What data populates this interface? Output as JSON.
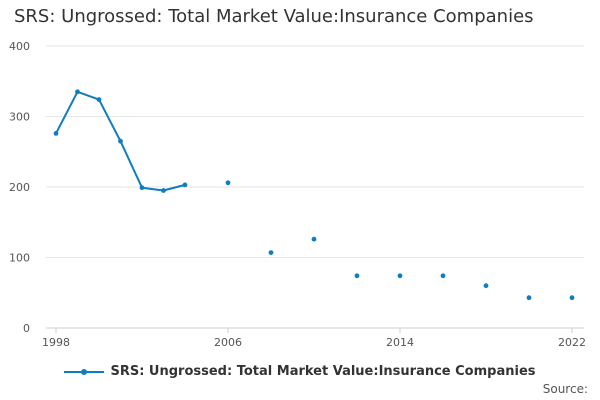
{
  "chart_data": {
    "type": "line",
    "title": "SRS: Ungrossed: Total Market Value:Insurance Companies",
    "xlabel": "",
    "ylabel": "",
    "xlim": [
      1998,
      2022
    ],
    "ylim": [
      0,
      400
    ],
    "x_ticks": [
      1998,
      2006,
      2014,
      2022
    ],
    "y_ticks": [
      0,
      100,
      200,
      300,
      400
    ],
    "grid": "horizontal",
    "legend_position": "bottom",
    "series": [
      {
        "name": "SRS: Ungrossed: Total Market Value:Insurance Companies",
        "color": "#0f7dbf",
        "x": [
          1998,
          1999,
          2000,
          2001,
          2002,
          2003,
          2004,
          2006,
          2008,
          2010,
          2012,
          2014,
          2016,
          2018,
          2020,
          2022
        ],
        "values": [
          276,
          335,
          324,
          265,
          199,
          195,
          203,
          206,
          107,
          126,
          74,
          74,
          74,
          60,
          43,
          43
        ]
      }
    ]
  },
  "legend": {
    "label": "SRS: Ungrossed: Total Market Value:Insurance Companies"
  },
  "source": {
    "label": "Source:"
  }
}
